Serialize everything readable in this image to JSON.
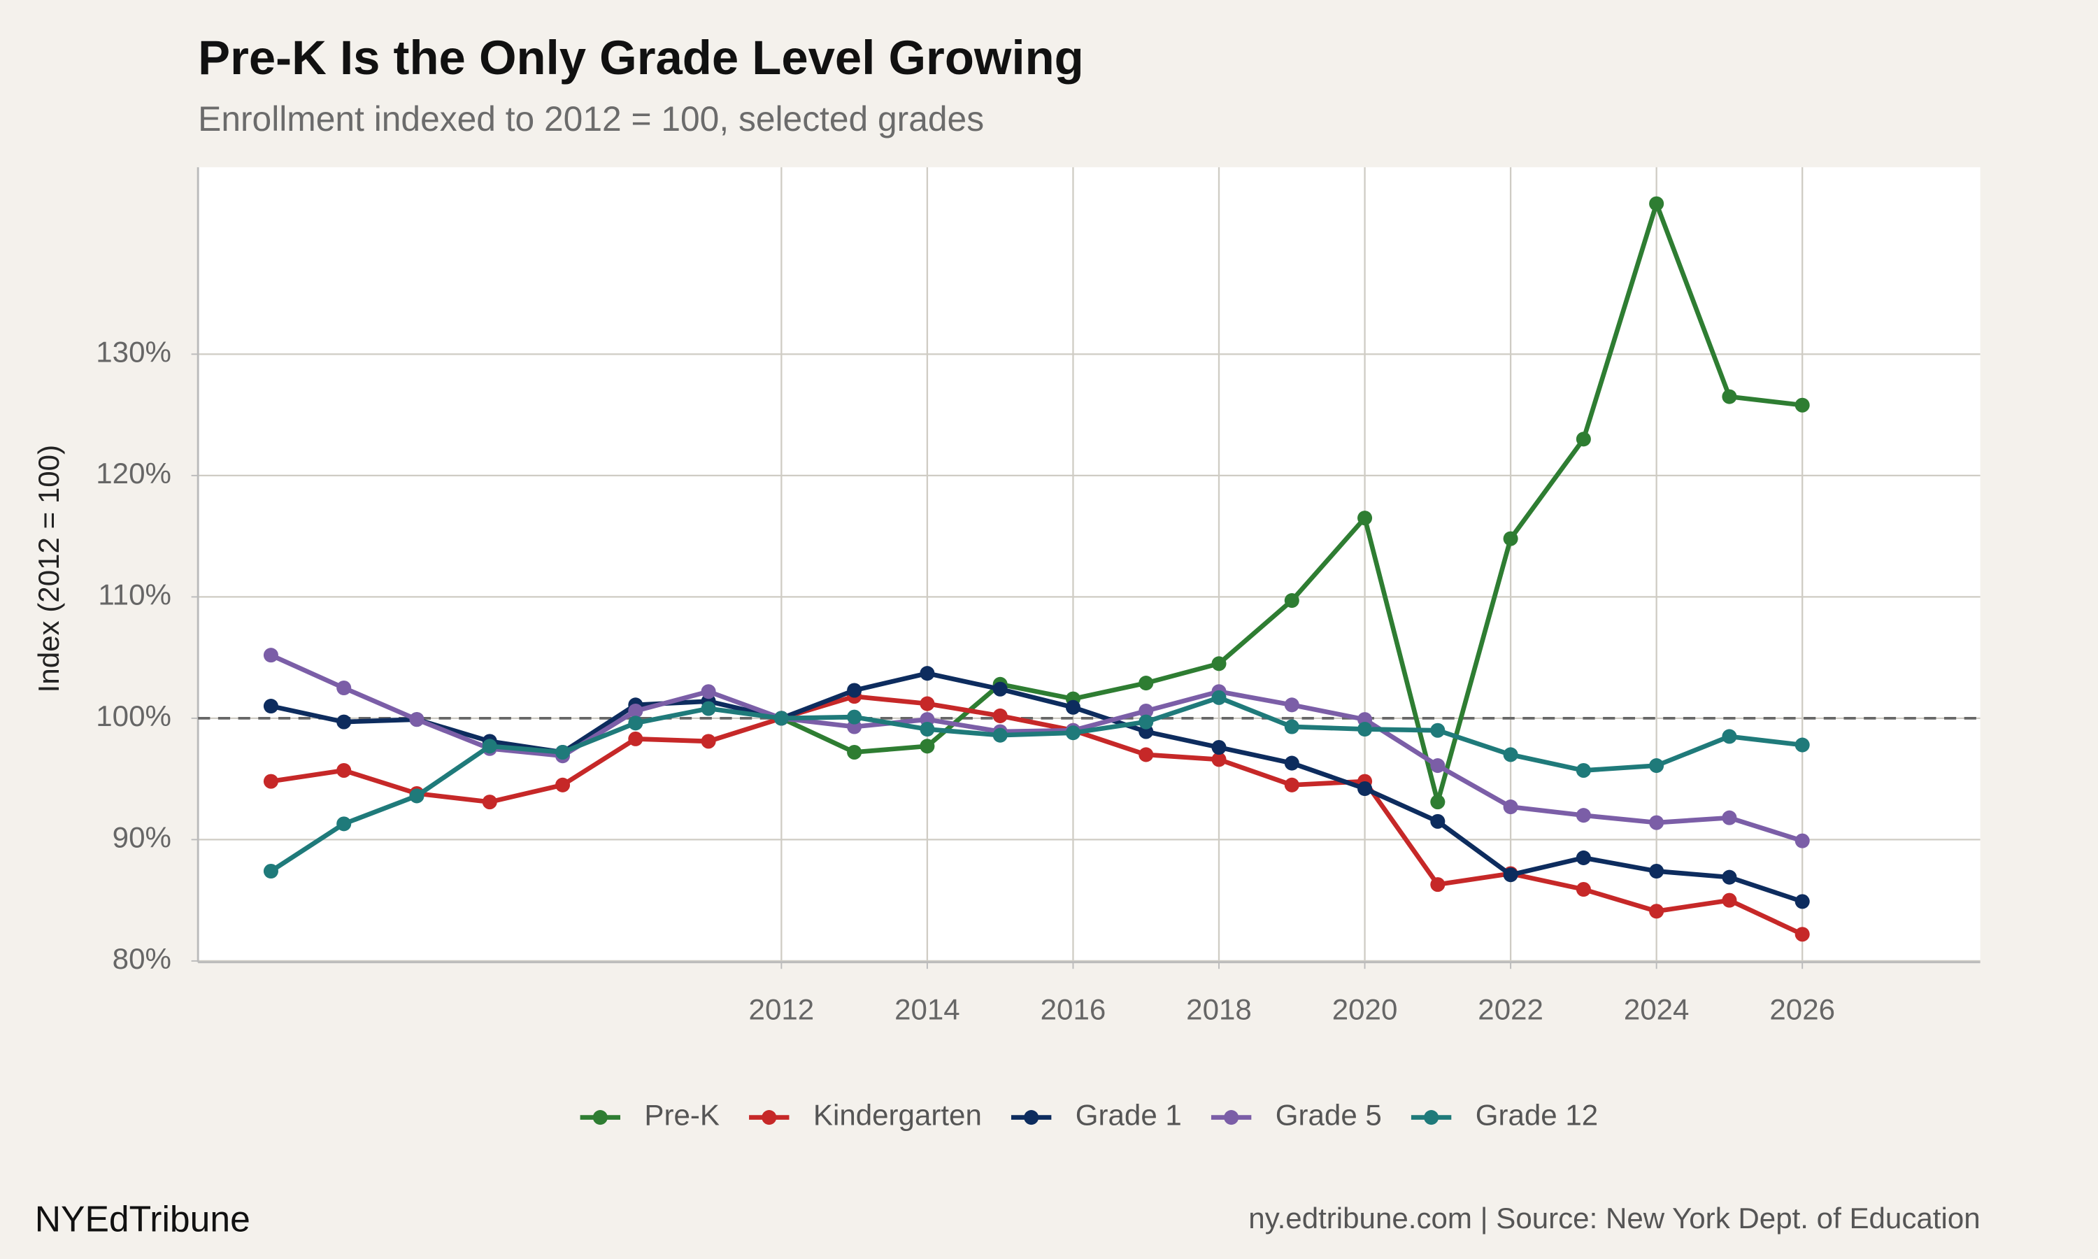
{
  "chart_data": {
    "type": "line",
    "title": "Pre-K Is the Only Grade Level Growing",
    "subtitle": "Enrollment indexed to 2012 = 100, selected grades",
    "y_label": "Index (2012 = 100)",
    "brand": "NYEdTribune",
    "source": "ny.edtribune.com | Source: New York Dept. of Education",
    "x": [
      2005,
      2006,
      2007,
      2008,
      2009,
      2010,
      2011,
      2012,
      2013,
      2014,
      2015,
      2016,
      2017,
      2018,
      2019,
      2020,
      2021,
      2022,
      2023,
      2024,
      2025,
      2026
    ],
    "xlim": [
      2004,
      2028.44
    ],
    "xticks": [
      2012,
      2014,
      2016,
      2018,
      2020,
      2022,
      2024,
      2026
    ],
    "ylim": [
      79.9,
      145.4
    ],
    "yticks": [
      {
        "value": 80,
        "label": "80%"
      },
      {
        "value": 90,
        "label": "90%"
      },
      {
        "value": 100,
        "label": "100%"
      },
      {
        "value": 110,
        "label": "110%"
      },
      {
        "value": 120,
        "label": "120%"
      },
      {
        "value": 130,
        "label": "130%"
      }
    ],
    "reference_line": 100,
    "grid": true,
    "legend": "bottom",
    "series": [
      {
        "name": "Pre-K",
        "color": "#2e7d32",
        "values": [
          null,
          null,
          null,
          null,
          null,
          null,
          null,
          100,
          97.2,
          97.7,
          102.8,
          101.6,
          102.9,
          104.5,
          109.7,
          116.5,
          93.1,
          114.8,
          123.0,
          142.4,
          126.5,
          125.8
        ]
      },
      {
        "name": "Kindergarten",
        "color": "#c62828",
        "values": [
          94.8,
          95.7,
          93.8,
          93.1,
          94.5,
          98.3,
          98.1,
          100,
          101.8,
          101.2,
          100.2,
          99.0,
          97.0,
          96.6,
          94.5,
          94.8,
          86.3,
          87.2,
          85.9,
          84.1,
          85.0,
          82.2
        ]
      },
      {
        "name": "Grade 1",
        "color": "#0d2c5e",
        "values": [
          101.0,
          99.7,
          99.9,
          98.1,
          97.2,
          101.1,
          101.4,
          100,
          102.3,
          103.7,
          102.4,
          100.9,
          98.9,
          97.6,
          96.3,
          94.2,
          91.5,
          87.1,
          88.5,
          87.4,
          86.9,
          84.9
        ]
      },
      {
        "name": "Grade 5",
        "color": "#7b5ea7",
        "values": [
          105.2,
          102.5,
          99.9,
          97.5,
          96.9,
          100.6,
          102.2,
          100,
          99.3,
          99.9,
          98.9,
          99.0,
          100.6,
          102.2,
          101.1,
          99.9,
          96.1,
          92.7,
          92.0,
          91.4,
          91.8,
          89.9
        ]
      },
      {
        "name": "Grade 12",
        "color": "#1f7a7a",
        "values": [
          87.4,
          91.3,
          93.6,
          97.7,
          97.2,
          99.6,
          100.8,
          100,
          100.1,
          99.1,
          98.6,
          98.8,
          99.7,
          101.7,
          99.3,
          99.1,
          99.0,
          97.0,
          95.7,
          96.1,
          98.5,
          97.8
        ]
      }
    ]
  }
}
